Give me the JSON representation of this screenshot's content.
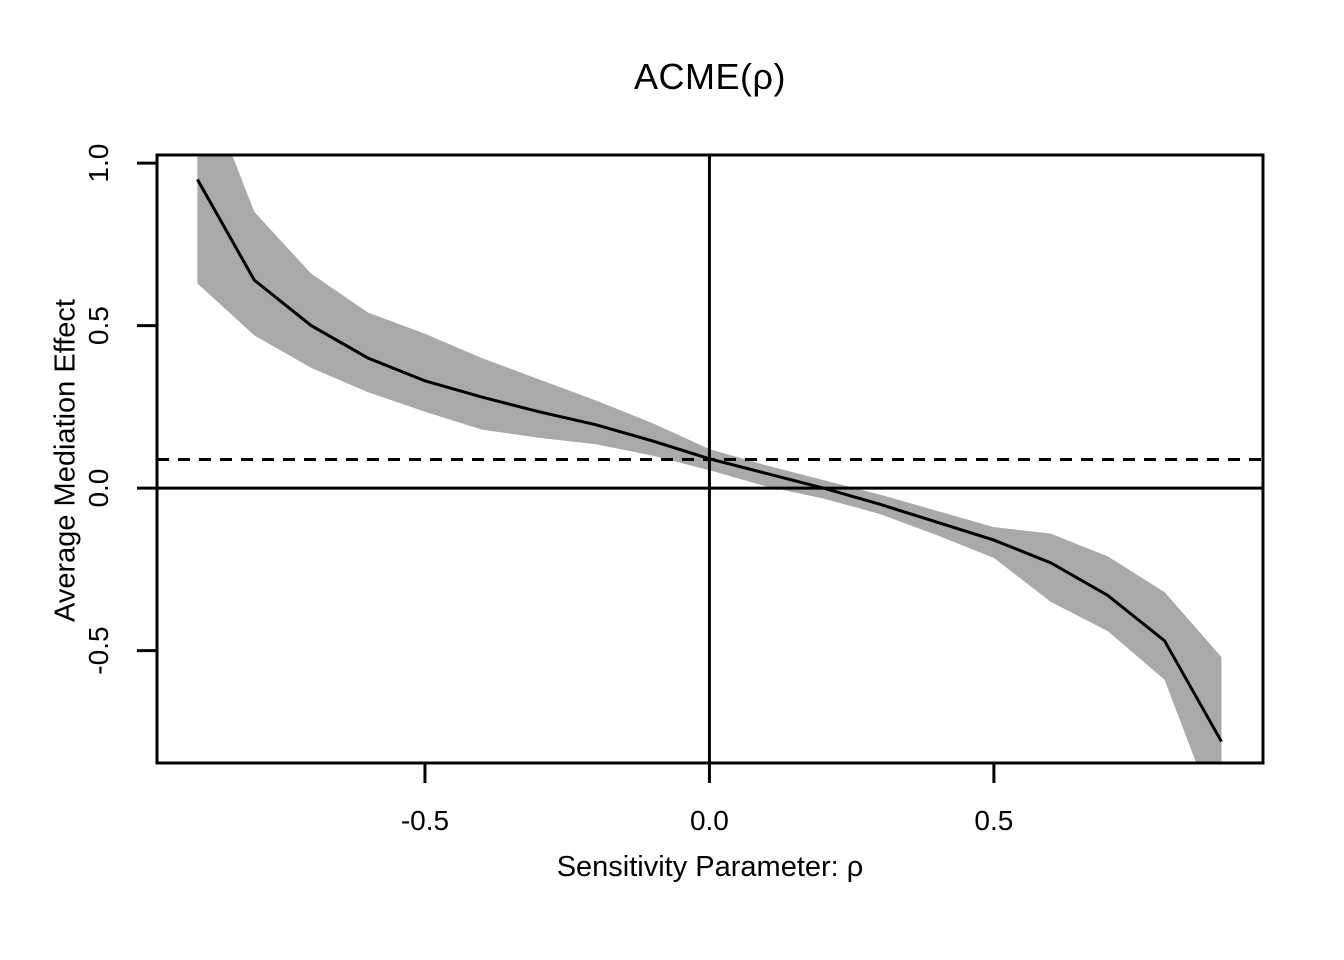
{
  "title": "ACME(ρ)",
  "axes": {
    "xlabel": "Sensitivity Parameter: ρ",
    "ylabel": "Average Mediation Effect"
  },
  "colors": {
    "band": "#a9a9a9",
    "line": "#000000",
    "background": "#ffffff"
  },
  "chart_data": {
    "type": "line",
    "title": "ACME(ρ)",
    "xlabel": "Sensitivity Parameter: ρ",
    "ylabel": "Average Mediation Effect",
    "x": [
      -0.9,
      -0.8,
      -0.7,
      -0.6,
      -0.5,
      -0.4,
      -0.3,
      -0.2,
      -0.1,
      0.0,
      0.1,
      0.2,
      0.3,
      0.4,
      0.5,
      0.6,
      0.7,
      0.8,
      0.9
    ],
    "series": [
      {
        "name": "ACME point estimate",
        "values": [
          0.95,
          0.64,
          0.5,
          0.4,
          0.33,
          0.28,
          0.235,
          0.195,
          0.145,
          0.09,
          0.045,
          0.0,
          -0.05,
          -0.105,
          -0.16,
          -0.23,
          -0.33,
          -0.47,
          -0.78
        ]
      },
      {
        "name": "CI upper bound",
        "values": [
          1.3,
          0.85,
          0.66,
          0.54,
          0.475,
          0.4,
          0.335,
          0.27,
          0.2,
          0.12,
          0.07,
          0.025,
          -0.02,
          -0.07,
          -0.12,
          -0.14,
          -0.21,
          -0.32,
          -0.52
        ]
      },
      {
        "name": "CI lower bound",
        "values": [
          0.63,
          0.47,
          0.37,
          0.295,
          0.235,
          0.18,
          0.155,
          0.135,
          0.1,
          0.055,
          0.005,
          -0.032,
          -0.08,
          -0.145,
          -0.215,
          -0.35,
          -0.44,
          -0.59,
          -1.05
        ]
      }
    ],
    "reference_lines": {
      "vertical_x": 0.0,
      "horizontal_y": 0.0,
      "dashed_horizontal_y": 0.088
    },
    "x_ticks": [
      -0.5,
      0.0,
      0.5
    ],
    "x_tick_labels": [
      "-0.5",
      "0.0",
      "0.5"
    ],
    "y_ticks": [
      -0.5,
      0.0,
      0.5,
      1.0
    ],
    "y_tick_labels": [
      "-0.5",
      "0.0",
      "0.5",
      "1.0"
    ],
    "xlim": [
      -0.971,
      0.973
    ],
    "ylim": [
      -0.846,
      1.025
    ],
    "grid": false,
    "legend": "none",
    "band_color": "#a9a9a9",
    "line_color": "#000000"
  }
}
